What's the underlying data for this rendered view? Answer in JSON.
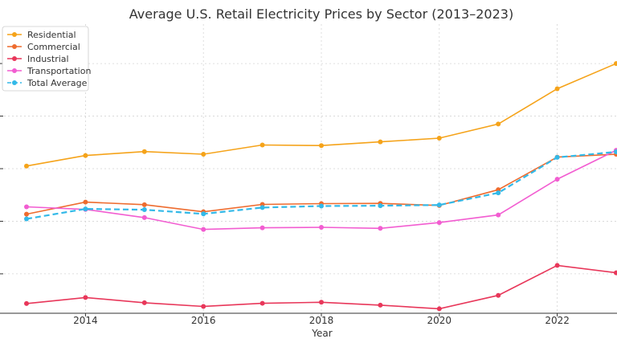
{
  "chart_data": {
    "type": "line",
    "title": "Average U.S. Retail Electricity Prices by Sector (2013–2023)",
    "xlabel": "Year",
    "ylabel": "",
    "x": [
      2013,
      2014,
      2015,
      2016,
      2017,
      2018,
      2019,
      2020,
      2021,
      2022,
      2023
    ],
    "x_ticks": [
      "2014",
      "2016",
      "2018",
      "2020",
      "2022"
    ],
    "xlim": [
      2013,
      2023
    ],
    "ylim": [
      6.5,
      17.5
    ],
    "grid": true,
    "legend_position": "top-left",
    "series": [
      {
        "name": "Residential",
        "color": "#f5a31a",
        "dash": false,
        "values": [
          12.1,
          12.5,
          12.65,
          12.55,
          12.9,
          12.88,
          13.02,
          13.16,
          13.7,
          15.04,
          16.0
        ]
      },
      {
        "name": "Commercial",
        "color": "#ee6c2f",
        "dash": false,
        "values": [
          10.27,
          10.73,
          10.63,
          10.36,
          10.64,
          10.67,
          10.68,
          10.6,
          11.2,
          12.44,
          12.55
        ]
      },
      {
        "name": "Industrial",
        "color": "#e8375a",
        "dash": false,
        "values": [
          6.87,
          7.1,
          6.9,
          6.76,
          6.88,
          6.92,
          6.81,
          6.67,
          7.18,
          8.32,
          8.04
        ]
      },
      {
        "name": "Transportation",
        "color": "#f25dd1",
        "dash": false,
        "values": [
          10.55,
          10.45,
          10.14,
          9.69,
          9.75,
          9.77,
          9.73,
          9.95,
          10.24,
          11.6,
          12.7
        ]
      },
      {
        "name": "Total Average",
        "color": "#33b9e8",
        "dash": true,
        "values": [
          10.09,
          10.47,
          10.44,
          10.28,
          10.52,
          10.58,
          10.59,
          10.62,
          11.08,
          12.43,
          12.64
        ]
      }
    ]
  }
}
